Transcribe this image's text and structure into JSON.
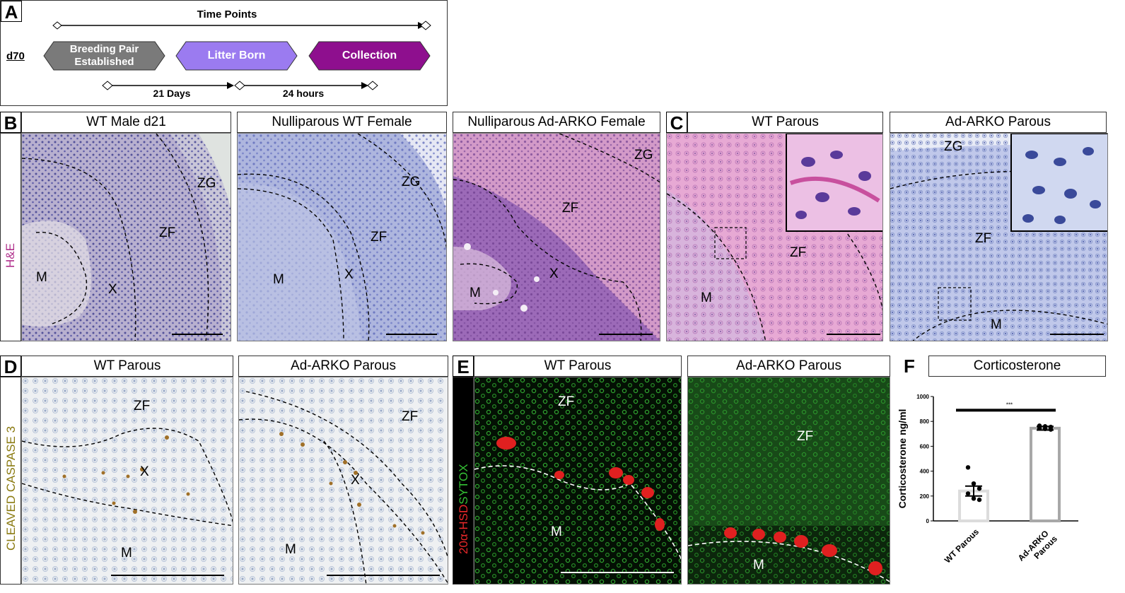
{
  "panels": {
    "A": {
      "letter": "A",
      "title": "Time Points",
      "day": "d70",
      "steps": [
        "Breeding Pair Established",
        "Litter Born",
        "Collection"
      ],
      "intervals": [
        "21 Days",
        "24 hours"
      ],
      "colors": {
        "gray": "#7a7a7a",
        "lavender": "#9b7bf0",
        "purple": "#8e0f8e"
      }
    },
    "B": {
      "letter": "B",
      "stain": "H&E",
      "titles": [
        "WT Male d21",
        "Nulliparous WT Female",
        "Nulliparous Ad-ARKO Female"
      ],
      "labels": {
        "img1": [
          "ZG",
          "ZF",
          "M",
          "X"
        ],
        "img2": [
          "ZG",
          "ZF",
          "M",
          "X"
        ],
        "img3": [
          "ZG",
          "ZF",
          "M",
          "X"
        ]
      }
    },
    "C": {
      "letter": "C",
      "titles": [
        "WT Parous",
        "Ad-ARKO Parous"
      ],
      "labels": {
        "img1": [
          "ZF",
          "M"
        ],
        "img2": [
          "ZG",
          "ZF",
          "M"
        ]
      }
    },
    "D": {
      "letter": "D",
      "stain": "CLEAVED CASPASE 3",
      "titles": [
        "WT Parous",
        "Ad-ARKO Parous"
      ],
      "labels": {
        "img1": [
          "ZF",
          "X",
          "M"
        ],
        "img2": [
          "ZF",
          "X",
          "M"
        ]
      }
    },
    "E": {
      "letter": "E",
      "stain_red": "20α-HSD",
      "stain_green": "SYTOX",
      "titles": [
        "WT Parous",
        "Ad-ARKO Parous"
      ],
      "labels": {
        "img1": [
          "ZF",
          "M"
        ],
        "img2": [
          "ZF",
          "M"
        ]
      }
    },
    "F": {
      "letter": "F",
      "title": "Corticosterone"
    }
  },
  "chart_data": {
    "type": "bar",
    "title": "Corticosterone",
    "ylabel": "Corticosterone  ng/ml",
    "categories": [
      "WT Parous",
      "Ad-ARKO Parous"
    ],
    "values": [
      240,
      745
    ],
    "errors": [
      40,
      15
    ],
    "points": [
      [
        430,
        300,
        260,
        220,
        180,
        170
      ],
      [
        765,
        760,
        755,
        745,
        740,
        735
      ]
    ],
    "yticks": [
      "0",
      "200",
      "400",
      "600",
      "800",
      "1000"
    ],
    "ylim": [
      0,
      1000
    ],
    "significance": "***",
    "colors": {
      "wt": "#dcdcdc",
      "arko": "#a8a8a8"
    }
  }
}
